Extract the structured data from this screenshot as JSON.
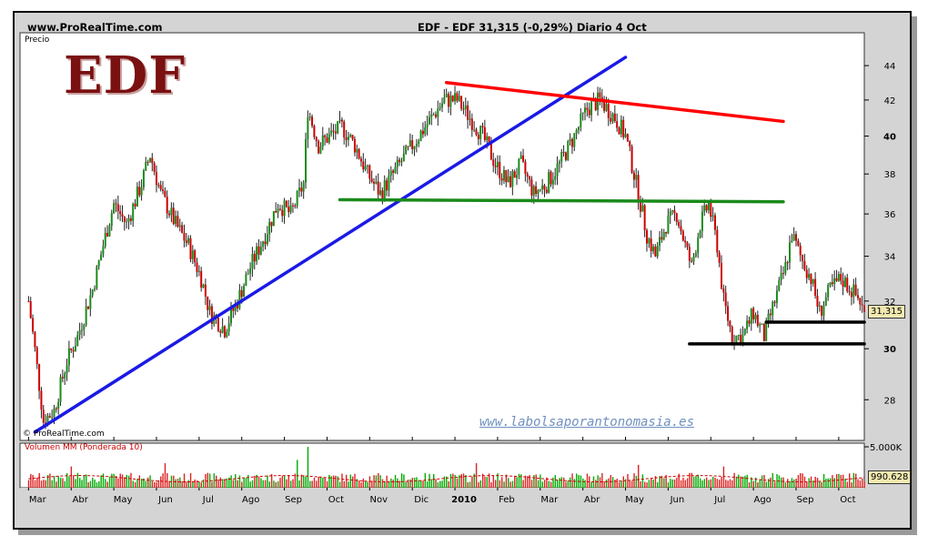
{
  "header": {
    "site": "www.ProRealTime.com",
    "info": "EDF - EDF   31,315 (-0,29%)   Diario  4 Oct"
  },
  "logo": "EDF",
  "watermark": "www.labolsaporantonomasia.es",
  "copyright": "© ProRealTime.com",
  "colors": {
    "background": "#ffffff",
    "frame": "#d4d4d4",
    "candle_up": "#1a8a1a",
    "candle_down": "#cc0000",
    "trend_support": "#1a1ae6",
    "resistance": "#ff0000",
    "neckline": "#1a8a1a",
    "support_lines": "#000000",
    "volume_up": "#00aa00",
    "volume_down": "#dd2222"
  },
  "chart_data": [
    {
      "type": "line",
      "pane": "price",
      "label": "Precio",
      "y_scale": "log",
      "ylim": [
        26.5,
        46
      ],
      "y_ticks": [
        {
          "value": 28,
          "label": "28"
        },
        {
          "value": 30,
          "label": "30",
          "bold": true
        },
        {
          "value": 32,
          "label": "32"
        },
        {
          "value": 34,
          "label": "34"
        },
        {
          "value": 36,
          "label": "36"
        },
        {
          "value": 38,
          "label": "38"
        },
        {
          "value": 40,
          "label": "40",
          "bold": true
        },
        {
          "value": 42,
          "label": "42"
        },
        {
          "value": 44,
          "label": "44"
        }
      ],
      "x_ticks": [
        {
          "pos": 0,
          "label": "Mar"
        },
        {
          "pos": 1,
          "label": "Abr"
        },
        {
          "pos": 2,
          "label": "May"
        },
        {
          "pos": 3,
          "label": "Jun"
        },
        {
          "pos": 4,
          "label": "Jul"
        },
        {
          "pos": 5,
          "label": "Ago"
        },
        {
          "pos": 6,
          "label": "Sep"
        },
        {
          "pos": 7,
          "label": "Oct"
        },
        {
          "pos": 8,
          "label": "Nov"
        },
        {
          "pos": 9,
          "label": "Dic"
        },
        {
          "pos": 10,
          "label": "2010",
          "bold": true
        },
        {
          "pos": 11,
          "label": "Feb"
        },
        {
          "pos": 12,
          "label": "Mar"
        },
        {
          "pos": 13,
          "label": "Abr"
        },
        {
          "pos": 14,
          "label": "May"
        },
        {
          "pos": 15,
          "label": "Jun"
        },
        {
          "pos": 16,
          "label": "Jul"
        },
        {
          "pos": 17,
          "label": "Ago"
        },
        {
          "pos": 18,
          "label": "Sep"
        },
        {
          "pos": 19,
          "label": "Oct"
        }
      ],
      "x_range": [
        -0.2,
        19.6
      ],
      "close_path": [
        [
          0,
          32
        ],
        [
          0.35,
          27.2
        ],
        [
          0.6,
          27.6
        ],
        [
          0.9,
          29.5
        ],
        [
          1.15,
          30.5
        ],
        [
          1.5,
          32.5
        ],
        [
          1.75,
          34.5
        ],
        [
          2.0,
          36.5
        ],
        [
          2.3,
          35.5
        ],
        [
          2.65,
          37.5
        ],
        [
          2.85,
          39.0
        ],
        [
          3.1,
          37.0
        ],
        [
          3.45,
          35.5
        ],
        [
          3.75,
          34.5
        ],
        [
          4.05,
          33.0
        ],
        [
          4.25,
          31.5
        ],
        [
          4.6,
          30.8
        ],
        [
          4.9,
          32.0
        ],
        [
          5.2,
          33.5
        ],
        [
          5.55,
          35.0
        ],
        [
          5.85,
          36.5
        ],
        [
          6.15,
          36.0
        ],
        [
          6.45,
          37.5
        ],
        [
          6.55,
          41.5
        ],
        [
          6.8,
          39.5
        ],
        [
          7.05,
          40.0
        ],
        [
          7.35,
          40.5
        ],
        [
          7.65,
          39.5
        ],
        [
          7.95,
          38.0
        ],
        [
          8.25,
          37.0
        ],
        [
          8.55,
          38.0
        ],
        [
          8.85,
          39.0
        ],
        [
          9.15,
          40.0
        ],
        [
          9.45,
          41.0
        ],
        [
          9.75,
          42.0
        ],
        [
          10.05,
          42.0
        ],
        [
          10.35,
          41.0
        ],
        [
          10.65,
          40.0
        ],
        [
          10.95,
          38.5
        ],
        [
          11.25,
          37.5
        ],
        [
          11.55,
          38.5
        ],
        [
          11.85,
          37.0
        ],
        [
          12.15,
          37.5
        ],
        [
          12.45,
          38.5
        ],
        [
          12.8,
          40.0
        ],
        [
          13.1,
          41.5
        ],
        [
          13.4,
          42.0
        ],
        [
          13.75,
          41.0
        ],
        [
          14.0,
          40.0
        ],
        [
          14.15,
          38.5
        ],
        [
          14.3,
          37.0
        ],
        [
          14.5,
          35.0
        ],
        [
          14.7,
          34.0
        ],
        [
          14.95,
          35.5
        ],
        [
          15.2,
          36.0
        ],
        [
          15.4,
          34.5
        ],
        [
          15.55,
          33.5
        ],
        [
          15.75,
          35.5
        ],
        [
          15.95,
          36.5
        ],
        [
          16.15,
          34.5
        ],
        [
          16.3,
          32.0
        ],
        [
          16.5,
          30.5
        ],
        [
          16.75,
          30.5
        ],
        [
          17.0,
          31.5
        ],
        [
          17.25,
          30.5
        ],
        [
          17.5,
          32.0
        ],
        [
          17.75,
          33.5
        ],
        [
          17.9,
          35.0
        ],
        [
          18.1,
          34.0
        ],
        [
          18.35,
          33.0
        ],
        [
          18.55,
          31.5
        ],
        [
          18.8,
          32.5
        ],
        [
          19.05,
          33.0
        ],
        [
          19.3,
          32.5
        ],
        [
          19.5,
          32.0
        ],
        [
          19.62,
          31.3
        ]
      ],
      "lines": [
        {
          "name": "trend-support",
          "color": "#1a1ae6",
          "from": [
            0.15,
            26.8
          ],
          "to": [
            14.0,
            44.5
          ]
        },
        {
          "name": "resistance",
          "color": "#ff0000",
          "from": [
            9.8,
            43.0
          ],
          "to": [
            17.7,
            40.8
          ]
        },
        {
          "name": "neckline",
          "color": "#1a8a1a",
          "from": [
            7.3,
            36.7
          ],
          "to": [
            17.7,
            36.6
          ]
        },
        {
          "name": "support-low",
          "color": "#000000",
          "from": [
            15.5,
            30.2
          ],
          "to": [
            19.6,
            30.2
          ]
        },
        {
          "name": "support-recent",
          "color": "#000000",
          "from": [
            17.3,
            31.1
          ],
          "to": [
            19.6,
            31.1
          ]
        }
      ],
      "last_value_label": "31,315"
    },
    {
      "type": "bar",
      "pane": "volume",
      "label": "Volumen MM (Ponderada 10)",
      "ylim": [
        0,
        5000
      ],
      "y_ticks": [
        {
          "value": 5000,
          "label": "5.000K"
        }
      ],
      "last_value_label": "990.628",
      "average_volume": 1300,
      "spikes": [
        {
          "pos": 6.55,
          "value": 5000
        },
        {
          "pos": 6.3,
          "value": 3400
        },
        {
          "pos": 10.5,
          "value": 3000
        },
        {
          "pos": 3.2,
          "value": 3000
        },
        {
          "pos": 1.0,
          "value": 2600
        },
        {
          "pos": 14.3,
          "value": 2800
        },
        {
          "pos": 16.3,
          "value": 2600
        }
      ]
    }
  ]
}
